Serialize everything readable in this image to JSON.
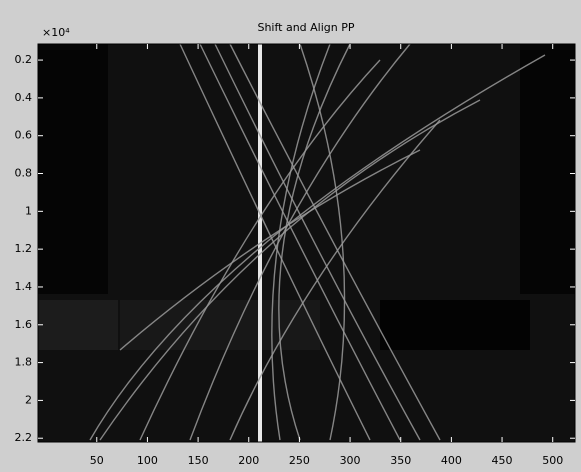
{
  "chart_data": {
    "type": "image",
    "title": "Shift and Align PP",
    "y_exponent_label": "×10⁴",
    "xlim": [
      -8,
      522
    ],
    "xticks": [
      50,
      100,
      150,
      200,
      250,
      300,
      350,
      400,
      450,
      500
    ],
    "ylim": [
      0.115,
      2.22
    ],
    "y_reversed": true,
    "yticks": [
      0.2,
      0.4,
      0.6,
      0.8,
      1,
      1.2,
      1.4,
      1.6,
      1.8,
      2,
      2.2
    ]
  }
}
